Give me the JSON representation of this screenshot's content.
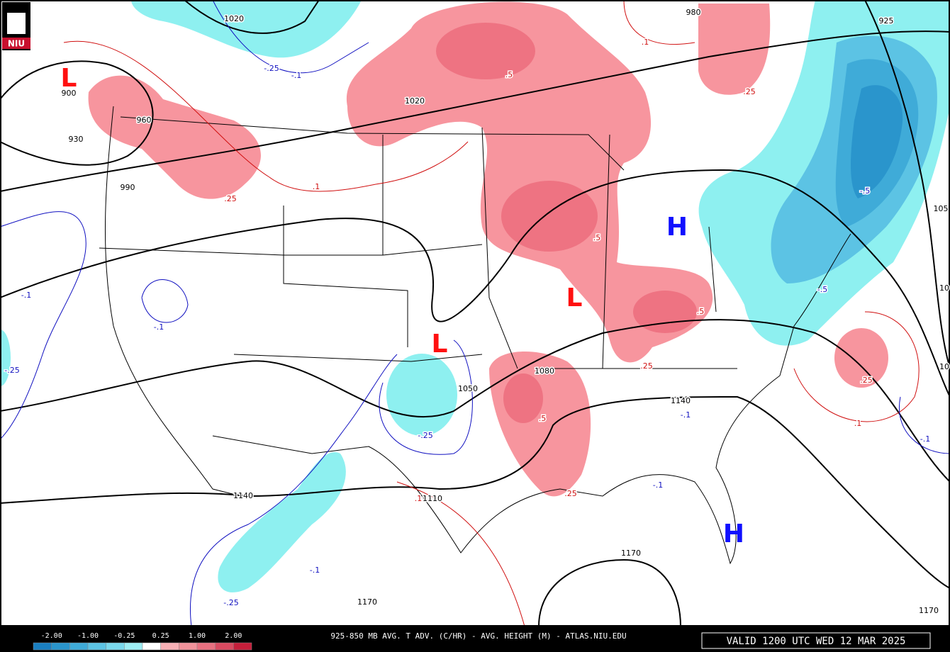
{
  "logo": "NIU",
  "footer": {
    "title": "925-850 MB AVG. T ADV. (C/HR) - AVG. HEIGHT (M) - ATLAS.NIU.EDU",
    "valid": "VALID 1200 UTC WED 12 MAR 2025"
  },
  "legend": {
    "labels": [
      "-2.00",
      "-1.00",
      "-0.25",
      "0.25",
      "1.00",
      "2.00"
    ],
    "colors": [
      "#1a7fc0",
      "#2a95cc",
      "#3fabd8",
      "#5cc3e4",
      "#7ad8ec",
      "#9eeef4",
      "#ffffff",
      "#f7b0b5",
      "#f0929a",
      "#e87080",
      "#d84a60",
      "#c41e3a"
    ]
  },
  "height_labels": [
    "1020",
    "900",
    "930",
    "960",
    "990",
    "1020",
    "1050",
    "1080",
    "1110",
    "1140",
    "1140",
    "1170",
    "1170",
    "1170",
    "980",
    "925",
    "105",
    "10",
    "10"
  ],
  "warm_labels": {
    "color": "#d01010",
    "texts": [
      ".1",
      ".5",
      ".25",
      ".1",
      ".25",
      ".5",
      ".5",
      ".25",
      ".25",
      ".5",
      ".25",
      ".1",
      ".1"
    ]
  },
  "cold_labels": {
    "color": "#1010c0",
    "texts": [
      "-.25",
      "-.1",
      "-.1",
      "-.1",
      "-.25",
      "-.25",
      "-.1",
      "-.1",
      "-.1",
      "-.5",
      "-.25",
      "-.1",
      "-.5"
    ]
  },
  "lows": {
    "color": "#ff1010",
    "texts": [
      "L",
      "L",
      "L"
    ]
  },
  "highs": {
    "color": "#1010ff",
    "texts": [
      "H",
      "H"
    ]
  }
}
